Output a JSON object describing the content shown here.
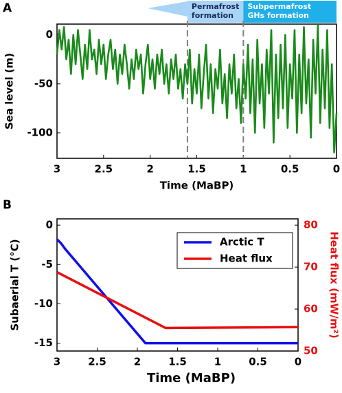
{
  "chart_data": [
    {
      "type": "line",
      "panel_label": "A",
      "xlabel": "Time (MaBP)",
      "ylabel": "Sea level (m)",
      "color": "#1a8a1a",
      "xlim": [
        3,
        0
      ],
      "ylim": [
        -126,
        11
      ],
      "xticks": [
        3,
        2.5,
        2,
        1.5,
        1,
        0.5,
        0
      ],
      "yticks": [
        -100,
        -50,
        0
      ],
      "x": [
        3,
        2.975,
        2.95,
        2.925,
        2.9,
        2.875,
        2.85,
        2.825,
        2.8,
        2.775,
        2.75,
        2.725,
        2.7,
        2.675,
        2.65,
        2.625,
        2.6,
        2.575,
        2.55,
        2.525,
        2.5,
        2.475,
        2.45,
        2.425,
        2.4,
        2.375,
        2.35,
        2.325,
        2.3,
        2.275,
        2.25,
        2.225,
        2.2,
        2.175,
        2.15,
        2.125,
        2.1,
        2.075,
        2.05,
        2.025,
        2,
        1.975,
        1.95,
        1.925,
        1.9,
        1.875,
        1.85,
        1.825,
        1.8,
        1.775,
        1.75,
        1.725,
        1.7,
        1.675,
        1.65,
        1.625,
        1.6,
        1.575,
        1.55,
        1.525,
        1.5,
        1.475,
        1.45,
        1.425,
        1.4,
        1.375,
        1.35,
        1.325,
        1.3,
        1.275,
        1.25,
        1.225,
        1.2,
        1.175,
        1.15,
        1.125,
        1.1,
        1.075,
        1.05,
        1.025,
        1,
        0.975,
        0.95,
        0.925,
        0.9,
        0.875,
        0.85,
        0.825,
        0.8,
        0.775,
        0.75,
        0.725,
        0.7,
        0.675,
        0.65,
        0.625,
        0.6,
        0.575,
        0.55,
        0.525,
        0.5,
        0.475,
        0.45,
        0.425,
        0.4,
        0.375,
        0.35,
        0.325,
        0.3,
        0.275,
        0.25,
        0.225,
        0.2,
        0.175,
        0.15,
        0.125,
        0.1,
        0.075,
        0.05,
        0.025,
        0
      ],
      "values": [
        -20,
        5,
        -15,
        8,
        -25,
        -5,
        -40,
        0,
        -30,
        5,
        -20,
        -45,
        -10,
        -35,
        5,
        -25,
        -15,
        -40,
        -5,
        -30,
        -10,
        -45,
        -20,
        -5,
        -35,
        -15,
        -50,
        -20,
        -40,
        -10,
        -30,
        -55,
        -25,
        -45,
        -15,
        -35,
        -20,
        -60,
        -30,
        -10,
        -45,
        -25,
        -55,
        -20,
        -40,
        -15,
        -50,
        -30,
        -60,
        -25,
        -45,
        -20,
        -55,
        -35,
        -65,
        -30,
        -50,
        -15,
        -70,
        -35,
        -60,
        -20,
        -75,
        -40,
        -10,
        -65,
        -30,
        -80,
        -35,
        -55,
        -15,
        -70,
        -40,
        -85,
        -30,
        -60,
        -20,
        -75,
        -45,
        -90,
        -30,
        -65,
        -10,
        -80,
        -25,
        -100,
        -5,
        -70,
        -30,
        -95,
        -15,
        -60,
        5,
        -110,
        -20,
        -85,
        -10,
        -75,
        0,
        -95,
        -30,
        -65,
        5,
        -100,
        -20,
        -80,
        8,
        -70,
        -25,
        -105,
        -5,
        -60,
        10,
        -90,
        -15,
        -75,
        5,
        -95,
        -30,
        -120,
        -80
      ],
      "vlines": [
        1.6,
        1
      ],
      "annotations": [
        {
          "lines": [
            "Permafrost",
            "formation"
          ],
          "xrange": [
            1.6,
            1
          ],
          "color": "#a9d4f5",
          "text_color": "#1a2a5a"
        },
        {
          "lines": [
            "Subpermafrost",
            "GHs formation"
          ],
          "xrange": [
            1,
            0
          ],
          "color": "#1fb0ea",
          "text_color": "#ffffff"
        }
      ]
    },
    {
      "type": "line",
      "panel_label": "B",
      "xlabel": "Time (MaBP)",
      "ylabel": "Subaerial T (°C)",
      "y2label": "Heat flux (mW/m²)",
      "xlim": [
        3,
        0
      ],
      "ylim": [
        -16,
        0.8
      ],
      "y2lim": [
        50,
        81.5
      ],
      "xticks": [
        3,
        2.5,
        2,
        1.5,
        1,
        0.5,
        0
      ],
      "yticks": [
        -15,
        -10,
        -5,
        0
      ],
      "y2ticks": [
        50,
        60,
        70,
        80
      ],
      "legend": "upper right",
      "series": [
        {
          "name": "Arctic T",
          "color": "#1010e8",
          "x": [
            3,
            2.95,
            2.9,
            1.9,
            0
          ],
          "values": [
            -1.8,
            -2.3,
            -3.0,
            -15,
            -15
          ]
        },
        {
          "name": "Heat flux",
          "color": "#e81010",
          "axis": "y2",
          "x": [
            3,
            1.65,
            0
          ],
          "values": [
            68.8,
            55.5,
            55.7
          ]
        }
      ]
    }
  ]
}
